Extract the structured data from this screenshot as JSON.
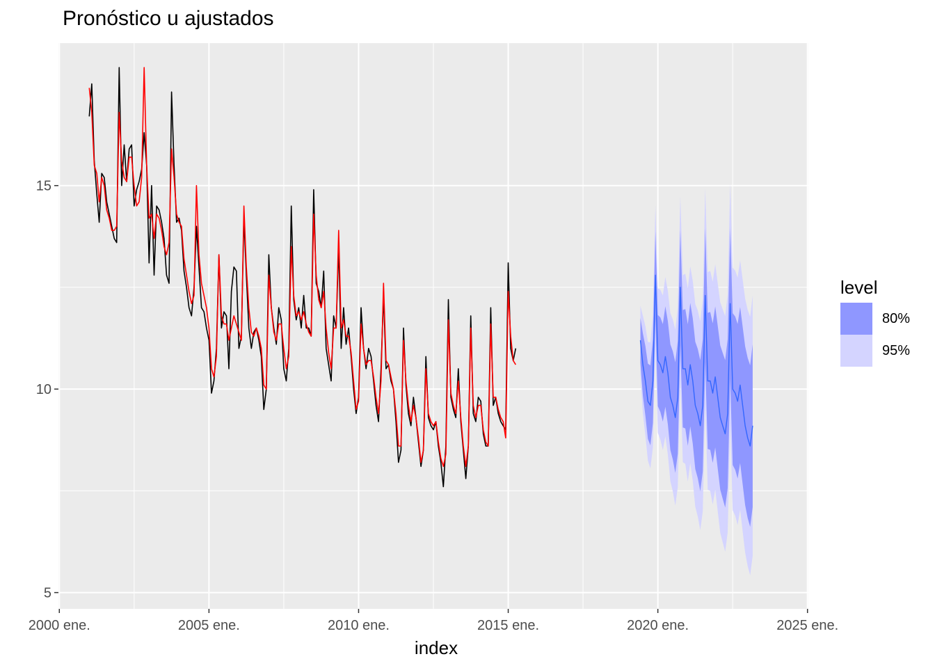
{
  "chart_data": {
    "type": "line",
    "title": "Pronóstico u ajustados",
    "xlabel": "index",
    "ylabel": "",
    "xlim": [
      1999.97,
      2025.03
    ],
    "ylim": [
      4.6,
      18.5
    ],
    "x_ticks": [
      {
        "value": 2000,
        "label": "2000 ene."
      },
      {
        "value": 2005,
        "label": "2005 ene."
      },
      {
        "value": 2010,
        "label": "2010 ene."
      },
      {
        "value": 2015,
        "label": "2015 ene."
      },
      {
        "value": 2020,
        "label": "2020 ene."
      },
      {
        "value": 2025,
        "label": "2025 ene."
      }
    ],
    "y_ticks": [
      {
        "value": 5,
        "label": "5"
      },
      {
        "value": 10,
        "label": "10"
      },
      {
        "value": 15,
        "label": "15"
      }
    ],
    "grid": true,
    "legend": {
      "title": "level",
      "position": "right"
    },
    "series": [
      {
        "role": "observed",
        "color": "#000000",
        "x_start": 2001.0,
        "step": 0.08333,
        "values": [
          16.7,
          17.5,
          15.6,
          14.8,
          14.1,
          15.3,
          15.2,
          14.6,
          14.3,
          14.0,
          13.7,
          13.6,
          17.9,
          15.0,
          16.0,
          15.1,
          15.9,
          16.0,
          14.5,
          14.9,
          15.1,
          15.4,
          16.3,
          15.5,
          13.1,
          15.0,
          12.8,
          14.5,
          14.4,
          14.1,
          13.7,
          12.8,
          12.6,
          17.3,
          15.5,
          14.1,
          14.2,
          13.9,
          12.9,
          12.5,
          12.0,
          11.8,
          12.5,
          14.0,
          13.0,
          12.0,
          11.9,
          11.5,
          11.2,
          9.9,
          10.2,
          11.0,
          13.3,
          11.5,
          11.9,
          11.8,
          10.5,
          12.4,
          13.0,
          12.9,
          11.0,
          11.3,
          14.2,
          12.8,
          11.5,
          11.0,
          11.4,
          11.5,
          11.2,
          10.8,
          9.5,
          10.0,
          13.3,
          12.0,
          11.5,
          11.1,
          12.0,
          11.7,
          10.5,
          10.2,
          11.0,
          14.5,
          12.2,
          11.7,
          12.0,
          11.5,
          12.3,
          11.5,
          11.5,
          11.3,
          14.9,
          12.6,
          12.4,
          12.0,
          12.9,
          11.0,
          10.6,
          10.2,
          11.8,
          11.5,
          13.5,
          11.0,
          12.0,
          11.1,
          11.5,
          10.8,
          10.0,
          9.4,
          9.8,
          12.0,
          11.0,
          10.5,
          11.0,
          10.8,
          10.2,
          9.6,
          9.2,
          10.5,
          12.3,
          10.5,
          10.6,
          10.2,
          10.0,
          9.2,
          8.2,
          8.5,
          11.5,
          10.1,
          9.4,
          9.1,
          9.8,
          9.3,
          8.7,
          8.1,
          8.5,
          10.8,
          9.3,
          9.1,
          9.0,
          9.2,
          8.6,
          8.2,
          7.6,
          8.6,
          12.2,
          9.8,
          9.5,
          9.3,
          10.5,
          9.2,
          8.5,
          7.8,
          8.6,
          11.8,
          9.4,
          9.2,
          9.8,
          9.7,
          8.9,
          8.6,
          8.6,
          12.0,
          9.6,
          9.8,
          9.4,
          9.2,
          9.1,
          9.0,
          13.1,
          11.0,
          10.7,
          11.0
        ]
      },
      {
        "role": "fitted",
        "color": "#ff0000",
        "x_start": 2001.0,
        "step": 0.08333,
        "values": [
          17.4,
          16.8,
          15.5,
          15.3,
          14.6,
          15.2,
          15.0,
          14.4,
          14.2,
          13.9,
          13.9,
          14.0,
          16.8,
          15.6,
          15.2,
          15.1,
          15.7,
          15.7,
          15.0,
          14.5,
          14.6,
          15.2,
          17.9,
          15.5,
          14.2,
          14.3,
          13.7,
          14.3,
          14.2,
          13.9,
          13.5,
          13.3,
          13.6,
          15.9,
          15.2,
          14.3,
          14.1,
          14.0,
          13.2,
          12.8,
          12.4,
          12.1,
          12.3,
          15.0,
          13.3,
          12.6,
          12.3,
          12.0,
          11.5,
          10.5,
          10.3,
          10.8,
          13.3,
          11.8,
          11.6,
          11.6,
          11.2,
          11.5,
          11.8,
          11.6,
          11.4,
          11.2,
          14.5,
          13.0,
          12.0,
          11.4,
          11.3,
          11.5,
          11.3,
          11.0,
          10.1,
          10.0,
          12.8,
          12.0,
          11.4,
          11.2,
          11.6,
          11.6,
          11.0,
          10.5,
          10.8,
          13.5,
          12.3,
          11.8,
          11.9,
          11.7,
          11.9,
          11.6,
          11.4,
          11.3,
          14.3,
          12.8,
          12.2,
          12.0,
          12.4,
          11.5,
          10.9,
          10.5,
          11.5,
          11.5,
          13.9,
          11.5,
          11.7,
          11.3,
          11.3,
          10.9,
          10.2,
          9.5,
          9.7,
          11.6,
          11.0,
          10.6,
          10.7,
          10.7,
          10.3,
          9.8,
          9.4,
          10.2,
          12.6,
          10.7,
          10.6,
          10.3,
          10.0,
          9.4,
          8.6,
          8.6,
          11.2,
          10.2,
          9.6,
          9.2,
          9.6,
          9.3,
          8.8,
          8.2,
          8.5,
          10.5,
          9.4,
          9.2,
          9.1,
          9.2,
          8.7,
          8.3,
          8.1,
          8.4,
          11.7,
          9.9,
          9.6,
          9.4,
          10.2,
          9.3,
          8.6,
          8.1,
          8.6,
          11.5,
          9.6,
          9.3,
          9.6,
          9.6,
          9.0,
          8.7,
          8.6,
          11.6,
          9.8,
          9.8,
          9.5,
          9.3,
          9.2,
          8.8,
          12.4,
          11.3,
          10.7,
          10.6
        ]
      },
      {
        "role": "forecast",
        "color": "#3366ff",
        "x_start": 2019.417,
        "step": 0.08333,
        "values": [
          11.2,
          10.6,
          10.2,
          9.7,
          9.6,
          10.2,
          12.8,
          10.7,
          10.6,
          10.4,
          10.8,
          10.4,
          9.8,
          9.6,
          9.3,
          9.8,
          12.5,
          10.5,
          10.5,
          10.1,
          10.6,
          10.2,
          9.6,
          9.4,
          9.1,
          9.6,
          12.3,
          10.2,
          10.2,
          9.9,
          10.3,
          9.8,
          9.3,
          9.1,
          8.9,
          9.4,
          12.1,
          10.0,
          9.9,
          9.7,
          10.1,
          9.6,
          9.1,
          8.8,
          8.6,
          9.1
        ]
      },
      {
        "role": "pi-80",
        "name": "80%",
        "color": "#8f97ff",
        "half_width_start": 0.55,
        "half_width_end": 2.0
      },
      {
        "role": "pi-95",
        "name": "95%",
        "color": "#d4d4ff",
        "half_width_start": 0.85,
        "half_width_end": 3.2
      }
    ]
  }
}
